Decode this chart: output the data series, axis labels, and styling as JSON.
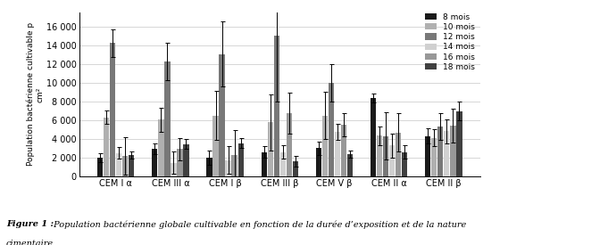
{
  "groups": [
    "CEM I α",
    "CEM III α",
    "CEM I β",
    "CEM III β",
    "CEM V β",
    "CEM II α",
    "CEM II β"
  ],
  "series_labels": [
    "8 mois",
    "10 mois",
    "12 mois",
    "14 mois",
    "16 mois",
    "18 mois"
  ],
  "colors": [
    "#1a1a1a",
    "#b0b0b0",
    "#787878",
    "#d0d0d0",
    "#989898",
    "#404040"
  ],
  "bar_values": [
    [
      2000,
      6300,
      14200,
      2500,
      2200,
      2300
    ],
    [
      2950,
      6050,
      12250,
      1450,
      2900,
      3450
    ],
    [
      2000,
      6500,
      13050,
      1750,
      2250,
      3550
    ],
    [
      2600,
      5750,
      15000,
      2600,
      6750,
      1600
    ],
    [
      3000,
      6500,
      10000,
      4750,
      5500,
      2350
    ],
    [
      8350,
      4350,
      4300,
      3300,
      4700,
      2600
    ],
    [
      4300,
      4100,
      5300,
      4800,
      5450,
      6950
    ]
  ],
  "error_values": [
    [
      500,
      700,
      1500,
      600,
      2000,
      400
    ],
    [
      600,
      1300,
      2000,
      1200,
      1200,
      500
    ],
    [
      800,
      2600,
      3500,
      1500,
      2700,
      500
    ],
    [
      600,
      3000,
      7000,
      700,
      2200,
      600
    ],
    [
      700,
      2500,
      2000,
      900,
      1200,
      400
    ],
    [
      500,
      1000,
      2500,
      1300,
      2000,
      700
    ],
    [
      800,
      900,
      1400,
      1300,
      1800,
      1000
    ]
  ],
  "ylim": [
    0,
    17500
  ],
  "yticks": [
    0,
    2000,
    4000,
    6000,
    8000,
    10000,
    12000,
    14000,
    16000
  ],
  "ytick_labels": [
    "0",
    "2 000",
    "4 000",
    "6 000",
    "8 000",
    "10 000",
    "12 000",
    "14 000",
    "16 000"
  ],
  "ylabel_line1": "Population bactérienne cultivable p",
  "ylabel_line2": "cm²",
  "caption_label": "Figure 1 :",
  "caption_text1": " Population bactérienne globale cultivable en fonction de la durée d’exposition et de la nature",
  "caption_text2": "cimentaire",
  "grid_color": "#d0d0d0"
}
